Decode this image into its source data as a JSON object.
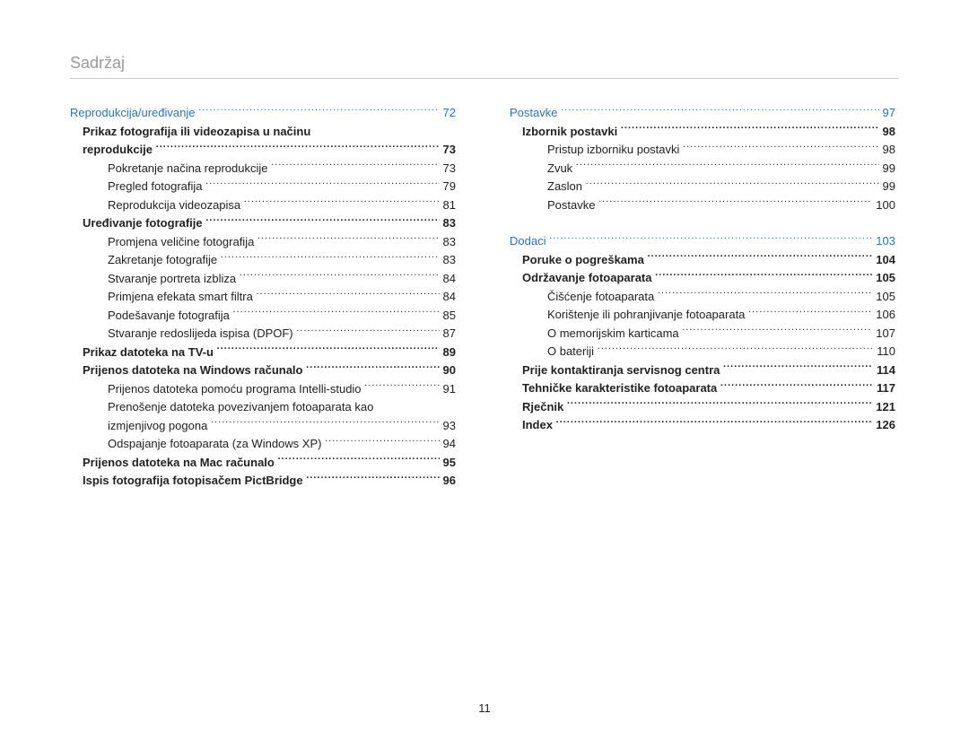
{
  "page_title": "Sadržaj",
  "page_number": "11",
  "colors": {
    "title_color": "#9a9a9a",
    "section_color": "#2a74b8",
    "text_color": "#222222",
    "underline_color": "#cccccc",
    "background": "#ffffff"
  },
  "fonts": {
    "title_size_pt": 14,
    "body_size_pt": 10
  },
  "left_column": [
    {
      "level": 0,
      "label": "Reprodukcija/uređivanje",
      "page": "72"
    },
    {
      "level": 1,
      "label": "Prikaz fotografija ili videozapisa u načinu",
      "no_page": true
    },
    {
      "level": "cont",
      "label": "reprodukcije",
      "page": "73"
    },
    {
      "level": 2,
      "label": "Pokretanje načina reprodukcije",
      "page": "73"
    },
    {
      "level": 2,
      "label": "Pregled fotografija",
      "page": "79"
    },
    {
      "level": 2,
      "label": "Reprodukcija videozapisa",
      "page": "81"
    },
    {
      "level": 1,
      "label": "Uređivanje fotografije",
      "page": "83"
    },
    {
      "level": 2,
      "label": "Promjena veličine fotografija",
      "page": "83"
    },
    {
      "level": 2,
      "label": "Zakretanje fotografije",
      "page": "83"
    },
    {
      "level": 2,
      "label": "Stvaranje portreta izbliza",
      "page": "84"
    },
    {
      "level": 2,
      "label": "Primjena efekata smart filtra",
      "page": "84"
    },
    {
      "level": 2,
      "label": "Podešavanje fotografija",
      "page": "85"
    },
    {
      "level": 2,
      "label": "Stvaranje redoslijeda ispisa (DPOF)",
      "page": "87"
    },
    {
      "level": 1,
      "label": "Prikaz datoteka na TV-u",
      "page": "89"
    },
    {
      "level": 1,
      "label": "Prijenos datoteka na Windows računalo",
      "page": "90"
    },
    {
      "level": 2,
      "label": "Prijenos datoteka pomoću programa Intelli-studio",
      "page": "91"
    },
    {
      "level": 2,
      "label": "Prenošenje datoteka povezivanjem fotoaparata kao",
      "no_page": true
    },
    {
      "level": "cont2",
      "label": "izmjenjivog pogona",
      "page": "93"
    },
    {
      "level": 2,
      "label": "Odspajanje fotoaparata (za Windows XP)",
      "page": "94"
    },
    {
      "level": 1,
      "label": "Prijenos datoteka na Mac računalo",
      "page": "95"
    },
    {
      "level": 1,
      "label": "Ispis fotografija fotopisačem PictBridge",
      "page": "96"
    }
  ],
  "right_column": [
    {
      "level": 0,
      "label": "Postavke",
      "page": "97"
    },
    {
      "level": 1,
      "label": "Izbornik postavki",
      "page": "98"
    },
    {
      "level": 2,
      "label": "Pristup izborniku postavki",
      "page": "98"
    },
    {
      "level": 2,
      "label": "Zvuk",
      "page": "99"
    },
    {
      "level": 2,
      "label": "Zaslon",
      "page": "99"
    },
    {
      "level": 2,
      "label": "Postavke",
      "page": "100"
    },
    {
      "spacer": true
    },
    {
      "level": 0,
      "label": "Dodaci",
      "page": "103"
    },
    {
      "level": 1,
      "label": "Poruke o pogreškama",
      "page": "104"
    },
    {
      "level": 1,
      "label": "Održavanje fotoaparata",
      "page": "105"
    },
    {
      "level": 2,
      "label": "Čišćenje fotoaparata",
      "page": "105"
    },
    {
      "level": 2,
      "label": "Korištenje ili pohranjivanje fotoaparata",
      "page": "106"
    },
    {
      "level": 2,
      "label": "O memorijskim karticama",
      "page": "107"
    },
    {
      "level": 2,
      "label": "O bateriji",
      "page": "110"
    },
    {
      "level": 1,
      "label": "Prije kontaktiranja servisnog centra",
      "page": "114"
    },
    {
      "level": 1,
      "label": "Tehničke karakteristike fotoaparata",
      "page": "117"
    },
    {
      "level": 1,
      "label": "Rječnik",
      "page": "121"
    },
    {
      "level": 1,
      "label": "Index",
      "page": "126"
    }
  ]
}
